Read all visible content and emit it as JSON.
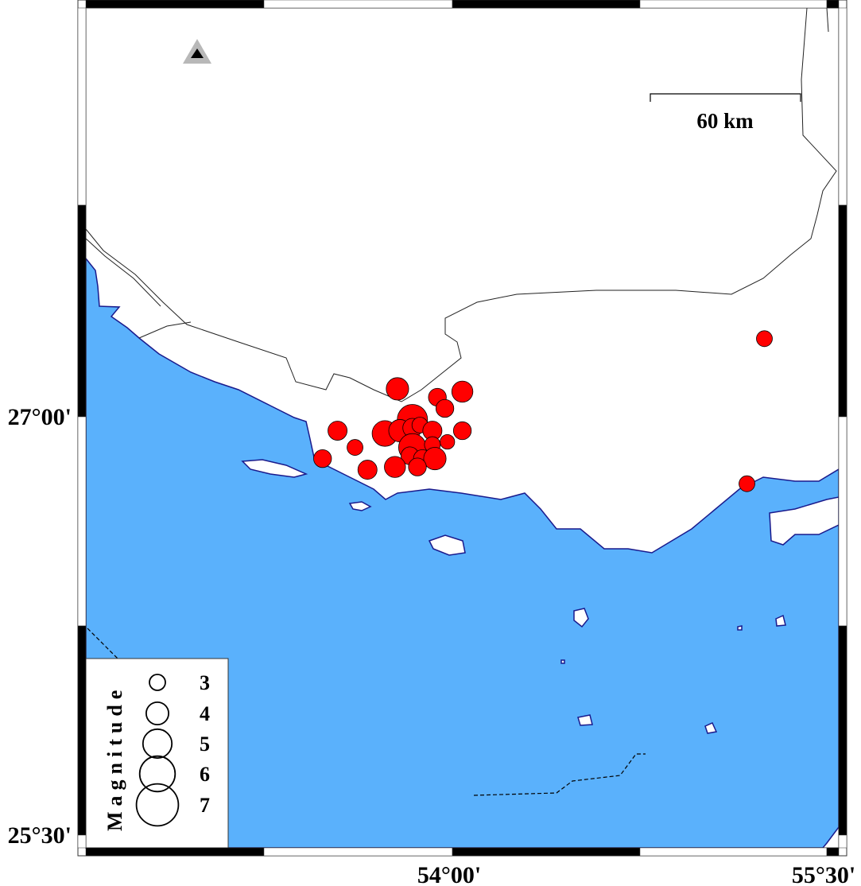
{
  "map": {
    "colors": {
      "sea": "#5ab1fc",
      "coast": "#1a1a8c",
      "land": "#ffffff",
      "event": "#ff0000"
    },
    "axes": {
      "left_labels": [
        {
          "text": "27°00'",
          "lat": 27.0
        },
        {
          "text": "25°30'",
          "lat": 25.5
        }
      ],
      "bottom_labels": [
        {
          "text": "54°00'",
          "lon": 54.0
        },
        {
          "text": "55°30'",
          "lon": 55.5
        }
      ]
    },
    "scale_bar": {
      "label": "60 km"
    },
    "station_marker": {
      "icon": "triangle-station-icon"
    },
    "legend": {
      "title": "Magnitude",
      "entries": [
        {
          "label": "3",
          "mag": 3
        },
        {
          "label": "4",
          "mag": 4
        },
        {
          "label": "5",
          "mag": 5
        },
        {
          "label": "6",
          "mag": 6
        },
        {
          "label": "7",
          "mag": 7
        }
      ]
    },
    "events": [
      {
        "lon": 53.78,
        "lat": 27.1,
        "mag": 4.0
      },
      {
        "lon": 53.94,
        "lat": 27.07,
        "mag": 3.3
      },
      {
        "lon": 54.04,
        "lat": 27.09,
        "mag": 3.8
      },
      {
        "lon": 53.97,
        "lat": 27.03,
        "mag": 3.3
      },
      {
        "lon": 53.84,
        "lat": 26.99,
        "mag": 5.2
      },
      {
        "lon": 53.54,
        "lat": 26.95,
        "mag": 3.5
      },
      {
        "lon": 53.73,
        "lat": 26.94,
        "mag": 4.5
      },
      {
        "lon": 53.79,
        "lat": 26.95,
        "mag": 4.0
      },
      {
        "lon": 53.84,
        "lat": 26.96,
        "mag": 3.5
      },
      {
        "lon": 53.87,
        "lat": 26.97,
        "mag": 3.0
      },
      {
        "lon": 53.92,
        "lat": 26.95,
        "mag": 3.5
      },
      {
        "lon": 54.04,
        "lat": 26.95,
        "mag": 3.3
      },
      {
        "lon": 53.98,
        "lat": 26.91,
        "mag": 2.8
      },
      {
        "lon": 53.84,
        "lat": 26.89,
        "mag": 4.8
      },
      {
        "lon": 53.92,
        "lat": 26.9,
        "mag": 3.0
      },
      {
        "lon": 53.83,
        "lat": 26.86,
        "mag": 3.3
      },
      {
        "lon": 53.88,
        "lat": 26.85,
        "mag": 3.3
      },
      {
        "lon": 53.93,
        "lat": 26.85,
        "mag": 4.0
      },
      {
        "lon": 53.61,
        "lat": 26.89,
        "mag": 3.0
      },
      {
        "lon": 53.48,
        "lat": 26.85,
        "mag": 3.3
      },
      {
        "lon": 53.66,
        "lat": 26.81,
        "mag": 3.5
      },
      {
        "lon": 53.77,
        "lat": 26.82,
        "mag": 3.8
      },
      {
        "lon": 53.86,
        "lat": 26.82,
        "mag": 3.3
      },
      {
        "lon": 55.25,
        "lat": 27.28,
        "mag": 3.0
      },
      {
        "lon": 55.18,
        "lat": 26.76,
        "mag": 3.0
      }
    ]
  }
}
